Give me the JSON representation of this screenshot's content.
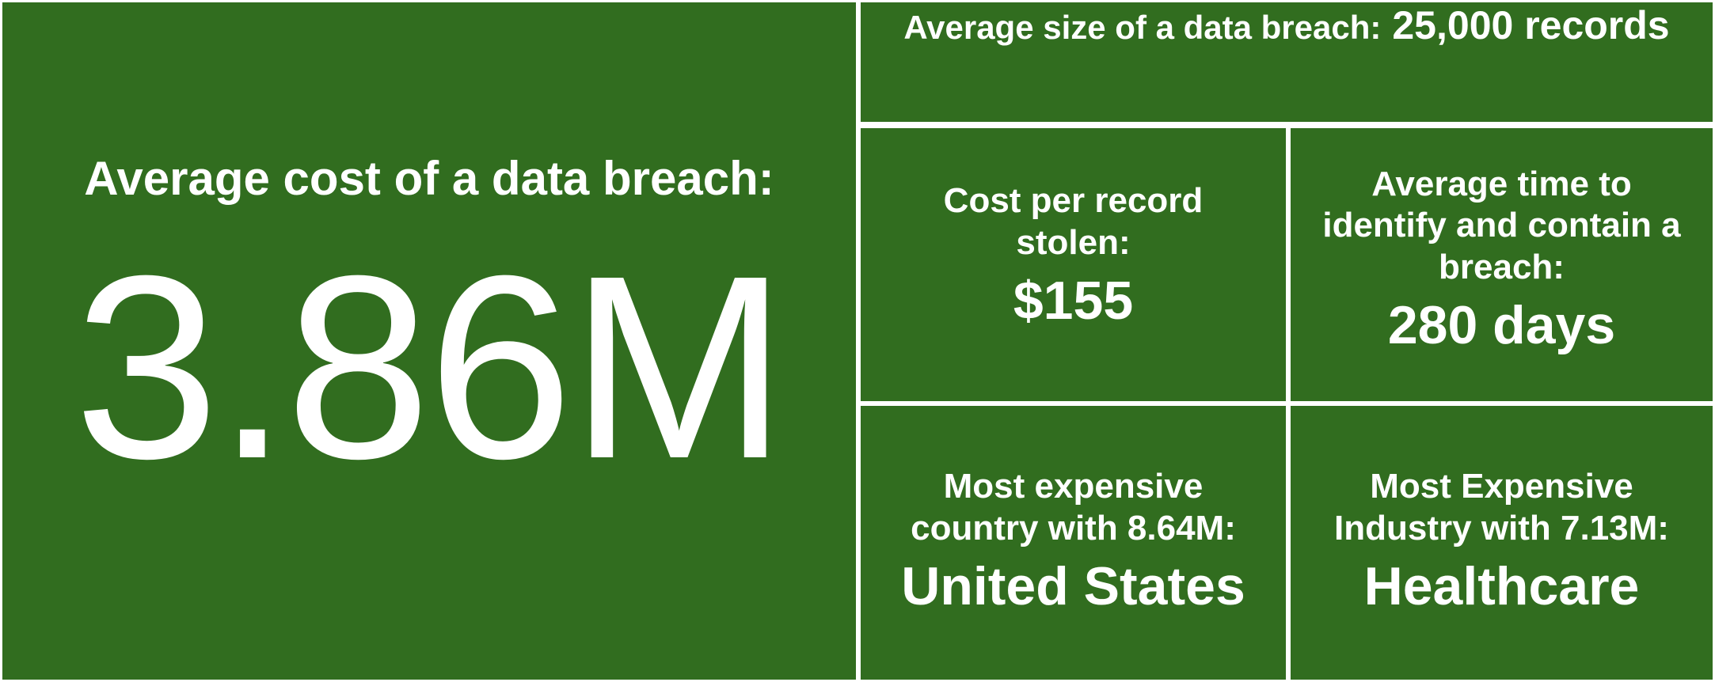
{
  "colors": {
    "tile_background": "#316d1f",
    "divider": "#ffffff",
    "text": "#ffffff"
  },
  "main": {
    "label": "Average cost of a data breach:",
    "value": "3.86M"
  },
  "size": {
    "label": "Average size of a data breach:",
    "value": "25,000 records"
  },
  "cost_per_record": {
    "label": "Cost per record stolen:",
    "value": "$155"
  },
  "time_to_contain": {
    "label": "Average time to identify and contain a breach:",
    "value": "280 days"
  },
  "country": {
    "label": "Most expensive country with 8.64M:",
    "value": "United States"
  },
  "industry": {
    "label": "Most Expensive Industry with 7.13M:",
    "value": "Healthcare"
  }
}
